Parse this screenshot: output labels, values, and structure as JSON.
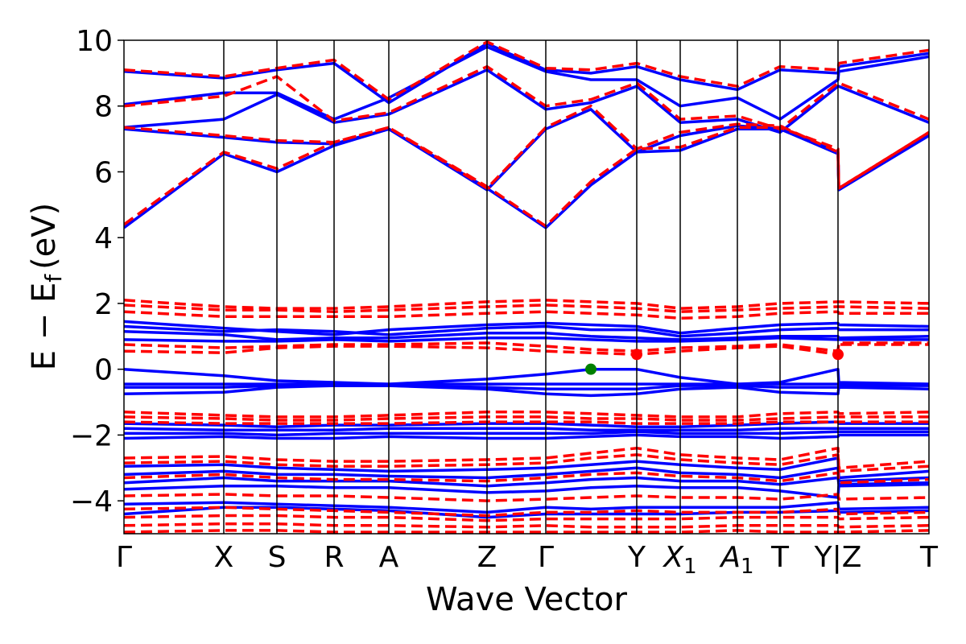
{
  "chart_data": {
    "type": "line",
    "xlabel": "Wave Vector",
    "ylabel": "E − E",
    "ylabel_sub": "f",
    "ylabel_unit": "(eV)",
    "ylim": [
      -5,
      10
    ],
    "yticks": [
      -4,
      -2,
      0,
      2,
      4,
      6,
      8,
      10
    ],
    "ytick_labels": [
      "−4",
      "−2",
      "0",
      "2",
      "4",
      "6",
      "8",
      "10"
    ],
    "grid": false,
    "legend": "none",
    "high_symmetry_points": [
      {
        "label": "Γ",
        "k": 0.0
      },
      {
        "label": "X",
        "k": 0.124
      },
      {
        "label": "S",
        "k": 0.19
      },
      {
        "label": "R",
        "k": 0.261
      },
      {
        "label": "A",
        "k": 0.329
      },
      {
        "label": "Z",
        "k": 0.451
      },
      {
        "label": "Γ",
        "k": 0.524
      },
      {
        "label": "Y",
        "k": 0.637
      },
      {
        "label": "X",
        "sub": "1",
        "k": 0.691
      },
      {
        "label": "A",
        "sub": "1",
        "k": 0.762
      },
      {
        "label": "T",
        "k": 0.815
      },
      {
        "label": "Y|Z",
        "k": 0.887
      },
      {
        "label": "T",
        "k": 1.0
      }
    ],
    "colors": {
      "series_a": "#0000ff",
      "series_b": "#ff0000",
      "marker_vbm": "#008000",
      "marker_cbm": "#ff0000"
    },
    "markers": [
      {
        "k": 0.58,
        "e": 0.0,
        "color": "#008000"
      },
      {
        "k": 0.637,
        "e": 0.45,
        "color": "#ff0000"
      },
      {
        "k": 0.887,
        "e": 0.45,
        "color": "#ff0000"
      }
    ],
    "series": [
      {
        "style": "solid",
        "color": "#0000ff",
        "k": [
          0.0,
          0.124,
          0.19,
          0.261,
          0.329,
          0.451,
          0.524,
          0.58,
          0.637,
          0.691,
          0.762,
          0.815,
          0.887,
          0.888,
          1.0
        ],
        "bands": [
          [
            4.3,
            6.55,
            6.0,
            6.8,
            7.3,
            5.5,
            4.3,
            5.6,
            6.6,
            6.65,
            7.3,
            7.3,
            6.6,
            5.45,
            7.1
          ],
          [
            7.3,
            7.05,
            6.9,
            6.85,
            7.3,
            5.45,
            7.3,
            7.9,
            6.6,
            7.1,
            7.4,
            7.3,
            6.55,
            5.45,
            7.15
          ],
          [
            7.35,
            7.6,
            8.35,
            7.5,
            7.75,
            9.1,
            7.9,
            8.1,
            8.6,
            7.5,
            7.6,
            7.2,
            8.6,
            8.6,
            7.5
          ],
          [
            8.05,
            8.4,
            8.4,
            7.6,
            8.25,
            9.8,
            9.05,
            8.8,
            8.8,
            8.0,
            8.25,
            7.6,
            8.8,
            9.05,
            9.5
          ],
          [
            9.05,
            8.85,
            9.1,
            9.3,
            8.1,
            9.9,
            9.1,
            9.0,
            9.2,
            8.8,
            8.5,
            9.1,
            9.0,
            9.2,
            9.6
          ],
          [
            1.45,
            1.25,
            1.15,
            1.05,
            1.2,
            1.35,
            1.4,
            1.35,
            1.3,
            1.1,
            1.25,
            1.35,
            1.4,
            1.35,
            1.3
          ],
          [
            1.3,
            1.15,
            1.2,
            1.15,
            1.05,
            1.25,
            1.3,
            1.2,
            1.2,
            1.0,
            1.1,
            1.2,
            1.25,
            1.2,
            1.2
          ],
          [
            1.15,
            1.05,
            0.9,
            0.95,
            0.95,
            1.1,
            1.1,
            1.0,
            0.95,
            0.9,
            0.95,
            1.0,
            1.0,
            0.95,
            1.0
          ],
          [
            0.9,
            0.85,
            0.85,
            0.9,
            0.85,
            0.95,
            0.95,
            0.9,
            0.85,
            0.85,
            0.9,
            0.95,
            0.9,
            0.9,
            0.9
          ],
          [
            0.0,
            -0.2,
            -0.35,
            -0.4,
            -0.45,
            -0.3,
            -0.15,
            0.0,
            0.0,
            -0.25,
            -0.45,
            -0.4,
            0.0,
            -0.4,
            -0.45
          ],
          [
            -0.45,
            -0.45,
            -0.45,
            -0.45,
            -0.45,
            -0.45,
            -0.45,
            -0.45,
            -0.45,
            -0.45,
            -0.45,
            -0.45,
            -0.45,
            -0.45,
            -0.45
          ],
          [
            -0.55,
            -0.55,
            -0.5,
            -0.5,
            -0.5,
            -0.55,
            -0.6,
            -0.6,
            -0.6,
            -0.5,
            -0.5,
            -0.55,
            -0.55,
            -0.5,
            -0.5
          ],
          [
            -0.75,
            -0.7,
            -0.55,
            -0.5,
            -0.5,
            -0.6,
            -0.75,
            -0.8,
            -0.75,
            -0.6,
            -0.55,
            -0.7,
            -0.75,
            -0.55,
            -0.6
          ],
          [
            -1.65,
            -1.7,
            -1.75,
            -1.7,
            -1.7,
            -1.65,
            -1.65,
            -1.7,
            -1.75,
            -1.75,
            -1.7,
            -1.65,
            -1.6,
            -1.65,
            -1.65
          ],
          [
            -1.8,
            -1.85,
            -1.85,
            -1.85,
            -1.8,
            -1.8,
            -1.8,
            -1.85,
            -1.85,
            -1.85,
            -1.85,
            -1.8,
            -1.8,
            -1.8,
            -1.8
          ],
          [
            -1.95,
            -1.95,
            -2.0,
            -1.95,
            -1.95,
            -1.95,
            -1.95,
            -1.95,
            -1.9,
            -1.95,
            -1.95,
            -1.95,
            -1.9,
            -1.9,
            -1.9
          ],
          [
            -2.1,
            -2.05,
            -2.1,
            -2.1,
            -2.05,
            -2.1,
            -2.1,
            -2.05,
            -2.0,
            -2.05,
            -2.05,
            -2.1,
            -2.05,
            -2.0,
            -2.0
          ],
          [
            -2.95,
            -2.9,
            -3.0,
            -3.05,
            -3.1,
            -3.05,
            -3.0,
            -2.9,
            -2.8,
            -2.9,
            -3.0,
            -3.05,
            -2.7,
            -3.3,
            -3.1
          ],
          [
            -3.2,
            -3.1,
            -3.2,
            -3.2,
            -3.25,
            -3.3,
            -3.2,
            -3.1,
            -3.0,
            -3.15,
            -3.2,
            -3.3,
            -3.0,
            -3.4,
            -3.3
          ],
          [
            -3.45,
            -3.3,
            -3.4,
            -3.4,
            -3.4,
            -3.55,
            -3.45,
            -3.35,
            -3.3,
            -3.4,
            -3.4,
            -3.5,
            -3.3,
            -3.5,
            -3.45
          ],
          [
            -3.65,
            -3.55,
            -3.55,
            -3.6,
            -3.6,
            -3.75,
            -3.7,
            -3.6,
            -3.55,
            -3.6,
            -3.6,
            -3.7,
            -3.9,
            -3.55,
            -3.5
          ],
          [
            -4.1,
            -4.05,
            -4.1,
            -4.15,
            -4.2,
            -4.35,
            -4.2,
            -4.25,
            -4.2,
            -4.2,
            -4.2,
            -4.2,
            -4.05,
            -4.25,
            -4.2
          ],
          [
            -4.4,
            -4.2,
            -4.2,
            -4.25,
            -4.3,
            -4.5,
            -4.4,
            -4.4,
            -4.4,
            -4.4,
            -4.35,
            -4.35,
            -4.3,
            -4.35,
            -4.3
          ]
        ]
      },
      {
        "style": "dashed",
        "color": "#ff0000",
        "k": [
          0.0,
          0.124,
          0.19,
          0.261,
          0.329,
          0.451,
          0.524,
          0.58,
          0.637,
          0.691,
          0.762,
          0.815,
          0.887,
          0.888,
          1.0
        ],
        "bands": [
          [
            4.4,
            6.6,
            6.1,
            6.9,
            7.35,
            5.55,
            4.35,
            5.7,
            6.7,
            6.75,
            7.35,
            7.35,
            6.7,
            5.5,
            7.2
          ],
          [
            7.35,
            7.1,
            6.95,
            6.9,
            7.35,
            5.5,
            7.35,
            8.0,
            6.7,
            7.2,
            7.45,
            7.4,
            6.6,
            5.5,
            7.2
          ],
          [
            8.0,
            8.3,
            8.9,
            7.55,
            7.8,
            9.2,
            8.0,
            8.2,
            8.7,
            7.6,
            7.7,
            7.3,
            8.7,
            8.7,
            7.6
          ],
          [
            9.1,
            8.9,
            9.15,
            9.4,
            8.2,
            9.95,
            9.15,
            9.1,
            9.3,
            8.9,
            8.6,
            9.2,
            9.1,
            9.3,
            9.7
          ],
          [
            2.1,
            1.9,
            1.85,
            1.85,
            1.9,
            2.05,
            2.1,
            2.05,
            2.0,
            1.85,
            1.9,
            2.0,
            2.05,
            2.05,
            2.0
          ],
          [
            1.95,
            1.8,
            1.8,
            1.75,
            1.8,
            1.9,
            1.95,
            1.9,
            1.85,
            1.75,
            1.8,
            1.85,
            1.9,
            1.9,
            1.85
          ],
          [
            1.75,
            1.6,
            1.6,
            1.6,
            1.6,
            1.7,
            1.75,
            1.7,
            1.65,
            1.55,
            1.6,
            1.7,
            1.75,
            1.7,
            1.7
          ],
          [
            0.75,
            0.65,
            0.7,
            0.75,
            0.75,
            0.8,
            0.7,
            0.6,
            0.55,
            0.65,
            0.7,
            0.75,
            0.55,
            0.8,
            0.8
          ],
          [
            0.55,
            0.5,
            0.65,
            0.7,
            0.7,
            0.65,
            0.55,
            0.5,
            0.45,
            0.55,
            0.65,
            0.7,
            0.45,
            0.75,
            0.75
          ],
          [
            -1.3,
            -1.4,
            -1.45,
            -1.45,
            -1.4,
            -1.3,
            -1.3,
            -1.35,
            -1.4,
            -1.45,
            -1.45,
            -1.35,
            -1.3,
            -1.35,
            -1.3
          ],
          [
            -1.45,
            -1.5,
            -1.55,
            -1.55,
            -1.5,
            -1.45,
            -1.45,
            -1.5,
            -1.5,
            -1.55,
            -1.55,
            -1.5,
            -1.45,
            -1.45,
            -1.45
          ],
          [
            -1.6,
            -1.65,
            -1.65,
            -1.65,
            -1.65,
            -1.6,
            -1.6,
            -1.6,
            -1.65,
            -1.65,
            -1.65,
            -1.6,
            -1.6,
            -1.6,
            -1.6
          ],
          [
            -2.7,
            -2.65,
            -2.75,
            -2.8,
            -2.8,
            -2.75,
            -2.7,
            -2.55,
            -2.4,
            -2.6,
            -2.7,
            -2.75,
            -2.4,
            -3.0,
            -2.8
          ],
          [
            -2.85,
            -2.8,
            -2.9,
            -2.95,
            -2.95,
            -2.9,
            -2.85,
            -2.7,
            -2.6,
            -2.75,
            -2.85,
            -2.9,
            -2.6,
            -3.1,
            -2.95
          ],
          [
            -3.3,
            -3.2,
            -3.3,
            -3.35,
            -3.35,
            -3.4,
            -3.3,
            -3.2,
            -3.15,
            -3.25,
            -3.3,
            -3.4,
            -3.15,
            -3.45,
            -3.35
          ],
          [
            -3.85,
            -3.8,
            -3.85,
            -3.85,
            -3.9,
            -4.0,
            -3.95,
            -3.9,
            -3.85,
            -3.9,
            -3.9,
            -3.95,
            -3.8,
            -3.95,
            -3.9
          ],
          [
            -4.25,
            -4.2,
            -4.25,
            -4.3,
            -4.35,
            -4.45,
            -4.35,
            -4.35,
            -4.3,
            -4.35,
            -4.35,
            -4.35,
            -4.25,
            -4.4,
            -4.35
          ],
          [
            -4.5,
            -4.45,
            -4.45,
            -4.5,
            -4.5,
            -4.6,
            -4.55,
            -4.55,
            -4.55,
            -4.55,
            -4.5,
            -4.5,
            -4.5,
            -4.55,
            -4.5
          ],
          [
            -4.75,
            -4.7,
            -4.7,
            -4.75,
            -4.75,
            -4.8,
            -4.75,
            -4.8,
            -4.8,
            -4.8,
            -4.75,
            -4.75,
            -4.75,
            -4.8,
            -4.75
          ],
          [
            -4.95,
            -4.9,
            -4.9,
            -4.95,
            -4.95,
            -4.95,
            -4.95,
            -4.95,
            -4.95,
            -4.95,
            -4.9,
            -4.95,
            -4.95,
            -4.95,
            -4.9
          ]
        ]
      }
    ]
  }
}
